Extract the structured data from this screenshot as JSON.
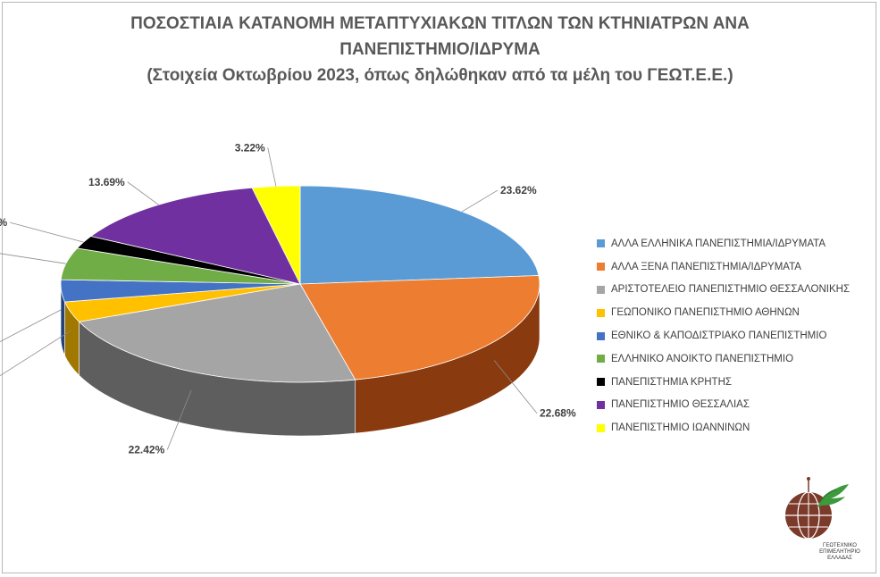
{
  "chart_data": {
    "type": "pie",
    "title_lines": [
      "ΠΟΣΟΣΤΙΑΙΑ ΚΑΤΑΝΟΜΗ ΜΕΤΑΠΤΥΧΙΑΚΩΝ ΤΙΤΛΩΝ ΤΩΝ ΚΤΗΝΙΑΤΡΩΝ ΑΝΑ",
      "ΠΑΝΕΠΙΣΤΗΜΙΟ/ΙΔΡΥΜΑ"
    ],
    "subtitle": "(Στοιχεία Οκτωβρίου 2023, όπως δηλώθηκαν από τα μέλη του ΓΕΩΤ.Ε.Ε.)",
    "legend_position": "right",
    "slices": [
      {
        "label": "ΑΛΛΑ ΕΛΛΗΝΙΚΑ ΠΑΝΕΠΙΣΤΗΜΙΑ/ΙΔΡΥΜΑΤΑ",
        "value": 23.62,
        "display": "23.62%",
        "color": "#5b9bd5",
        "side_color": "#2e5f8c"
      },
      {
        "label": "ΑΛΛΑ ΞΕΝΑ ΠΑΝΕΠΙΣΤΗΜΙΑ/ΙΔΡΥΜΑΤΑ",
        "value": 22.68,
        "display": "22.68%",
        "color": "#ed7d31",
        "side_color": "#8a3a0f"
      },
      {
        "label": "ΑΡΙΣΤΟΤΕΛΕΙΟ ΠΑΝΕΠΙΣΤΗΜΙΟ ΘΕΣΣΑΛΟΝΙΚΗΣ",
        "value": 22.42,
        "display": "22.42%",
        "color": "#a5a5a5",
        "side_color": "#5e5e5e"
      },
      {
        "label": "ΓΕΩΠΟΝΙΚΟ ΠΑΝΕΠΙΣΤΗΜΙΟ ΑΘΗΝΩΝ",
        "value": 3.36,
        "display": "3.36%",
        "color": "#ffc000",
        "side_color": "#a07800"
      },
      {
        "label": "ΕΘΝΙΚΟ & ΚΑΠΟΔΙΣΤΡΙΑΚΟ ΠΑΝΕΠΙΣΤΗΜΙΟ",
        "value": 3.62,
        "display": "3.62%",
        "color": "#4472c4",
        "side_color": "#22427a"
      },
      {
        "label": "ΕΛΛΗΝΙΚΟ ΑΝΟΙΚΤΟ ΠΑΝΕΠΙΣΤΗΜΙΟ",
        "value": 5.23,
        "display": "5.23%",
        "color": "#70ad47",
        "side_color": "#3e6a23"
      },
      {
        "label": "ΠΑΝΕΠΙΣΤΗΜΙΑ ΚΡΗΤΗΣ",
        "value": 2.15,
        "display": "2.15%",
        "color": "#000000",
        "side_color": "#000000"
      },
      {
        "label": "ΠΑΝΕΠΙΣΤΗΜΙΟ ΘΕΣΣΑΛΙΑΣ",
        "value": 13.69,
        "display": "13.69%",
        "color": "#7030a0",
        "side_color": "#3f145e"
      },
      {
        "label": "ΠΑΝΕΠΙΣΤΗΜΙΟ ΙΩΑΝΝΙΝΩΝ",
        "value": 3.22,
        "display": "3.22%",
        "color": "#ffff00",
        "side_color": "#9b9b00"
      }
    ]
  },
  "logo": {
    "name": "geotee-logo",
    "text_lines": [
      "ΓΕΩΤΕΧΝΙΚΟ",
      "ΕΠΙΜΕΛΗΤΗΡΙΟ",
      "ΕΛΛΑΔΑΣ"
    ],
    "arc_text": "ΓΕΩΤ.Ε.Ε."
  }
}
